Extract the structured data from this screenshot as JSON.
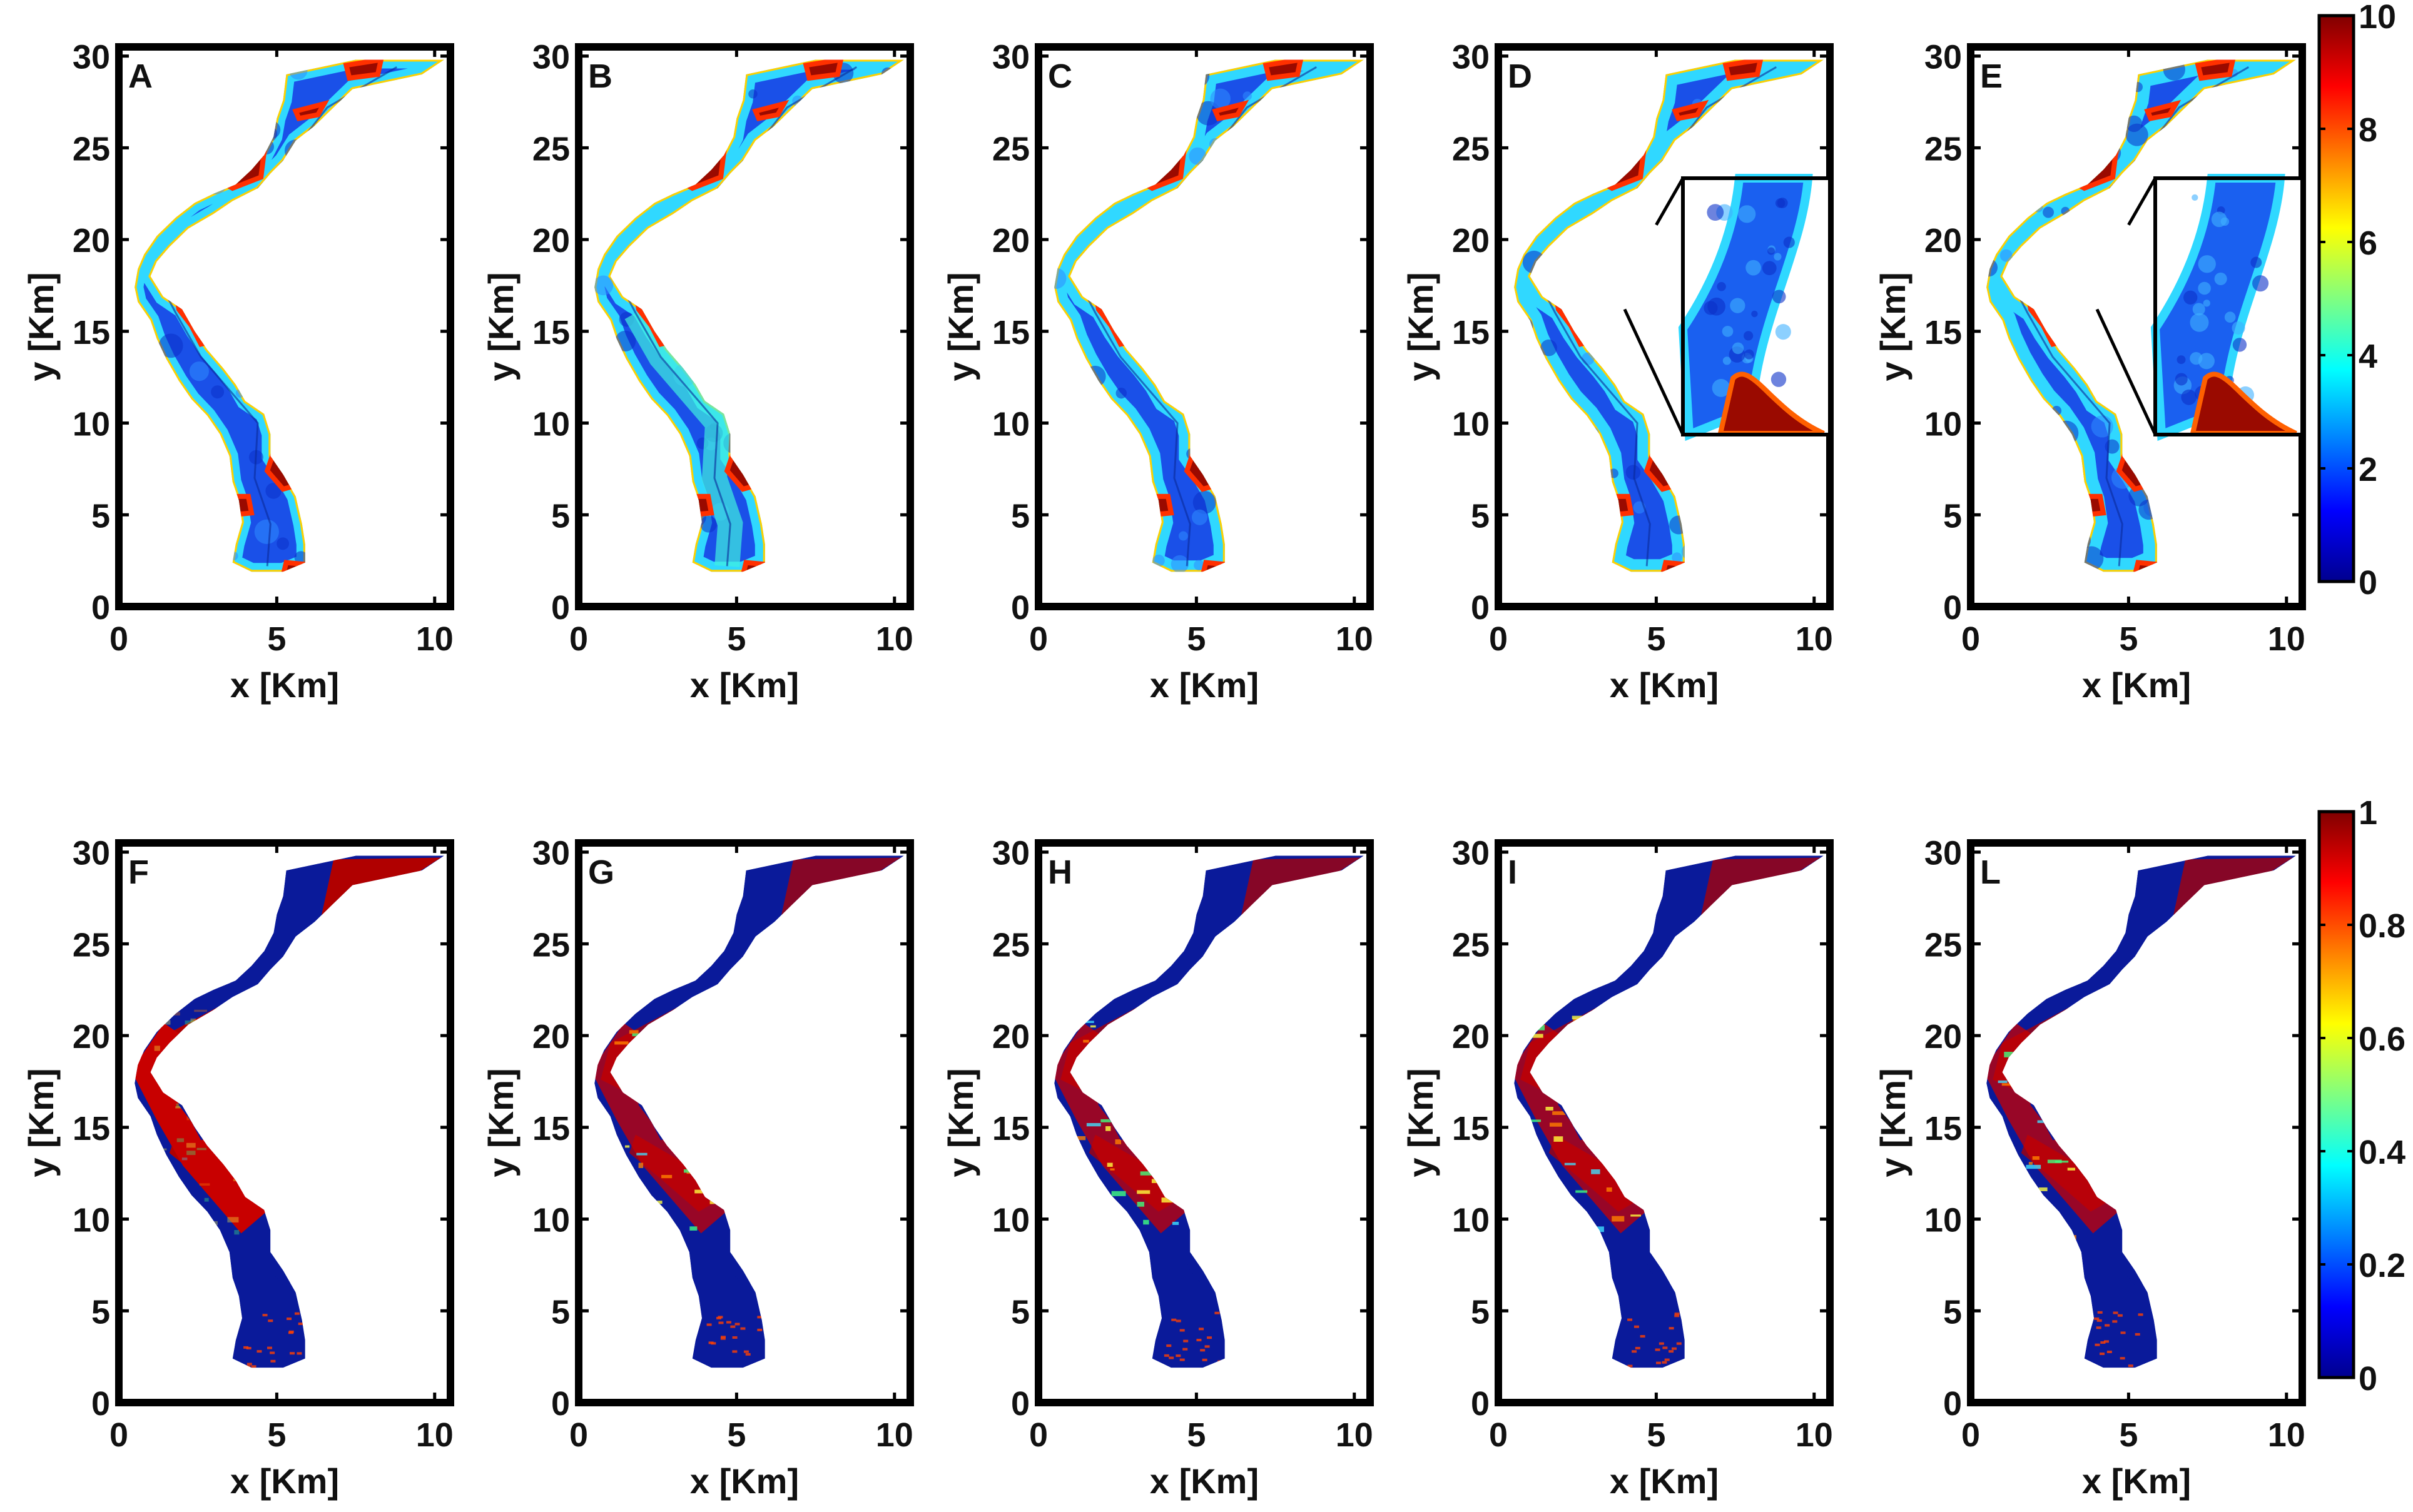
{
  "figure": {
    "rows": [
      {
        "colorbar": {
          "ticks": [
            "0",
            "2",
            "4",
            "6",
            "8",
            "10"
          ],
          "vmin": 0,
          "vmax": 10
        },
        "panels": [
          {
            "letter": "A",
            "inset": false
          },
          {
            "letter": "B",
            "inset": false
          },
          {
            "letter": "C",
            "inset": false
          },
          {
            "letter": "D",
            "inset": true
          },
          {
            "letter": "E",
            "inset": true
          }
        ]
      },
      {
        "colorbar": {
          "ticks": [
            "0",
            "0.2",
            "0.4",
            "0.6",
            "0.8",
            "1"
          ],
          "vmin": 0,
          "vmax": 1
        },
        "panels": [
          {
            "letter": "F",
            "inset": false
          },
          {
            "letter": "G",
            "inset": false
          },
          {
            "letter": "H",
            "inset": false
          },
          {
            "letter": "I",
            "inset": false
          },
          {
            "letter": "L",
            "inset": false
          }
        ]
      }
    ],
    "xticks": [
      "0",
      "5",
      "10"
    ],
    "yticks": [
      "0",
      "5",
      "10",
      "15",
      "20",
      "25",
      "30"
    ],
    "xlabel": "x [Km]",
    "ylabel": "y [Km]",
    "colormap": [
      "#00008f",
      "#0000ff",
      "#0080ff",
      "#00ffff",
      "#80ff80",
      "#ffff00",
      "#ff8000",
      "#ff0000",
      "#800000"
    ]
  },
  "chart_data": {
    "type": "heatmap",
    "description_panels": [
      "A",
      "B",
      "C",
      "D",
      "E",
      "F",
      "G",
      "H",
      "I",
      "L"
    ],
    "x_range": [
      0,
      10.5
    ],
    "y_range": [
      0,
      30.5
    ],
    "colorbar_top": {
      "min": 0,
      "max": 10,
      "ticks": [
        0,
        2,
        4,
        6,
        8,
        10
      ]
    },
    "colorbar_bottom": {
      "min": 0,
      "max": 1,
      "ticks": [
        0,
        0.2,
        0.4,
        0.6,
        0.8,
        1
      ]
    },
    "xlabel": "x [Km]",
    "ylabel": "y [Km]"
  }
}
